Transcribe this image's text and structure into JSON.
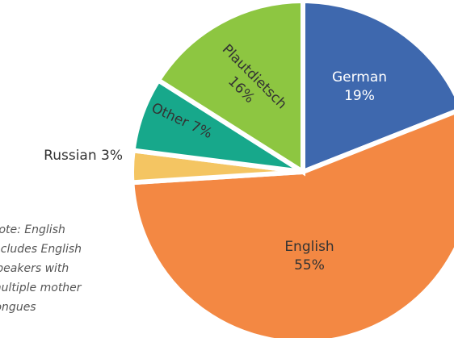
{
  "chart_data": {
    "type": "pie",
    "categories": [
      "German",
      "English",
      "Russian",
      "Other",
      "Plautdietsch"
    ],
    "values": [
      19,
      55,
      3,
      7,
      16
    ],
    "value_labels": [
      "19%",
      "55%",
      "3%",
      "7%",
      "16%"
    ],
    "colors": [
      "#3e68ae",
      "#f38843",
      "#f4c562",
      "#17a88b",
      "#8dc641"
    ],
    "start_angle": 0,
    "direction": "clockwise",
    "note": [
      "Note: English",
      "includes English",
      "speakers with",
      "multiple mother",
      "tongues"
    ]
  }
}
